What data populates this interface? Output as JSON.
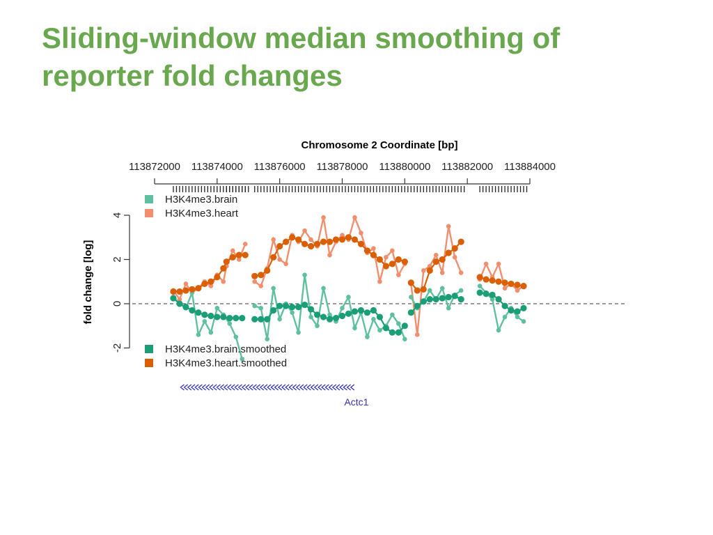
{
  "slide": {
    "title_line1": "Sliding-window median smoothing of",
    "title_line2": "reporter fold changes"
  },
  "colors": {
    "title": "#6aa84f",
    "brain": "#5fc0a0",
    "heart": "#f08e6e",
    "brain_smoothed": "#1b9e77",
    "heart_smoothed": "#d95f02",
    "gene": "#3333aa"
  },
  "chart_data": {
    "type": "line",
    "title": "Chromosome 2 Coordinate [bp]",
    "xlabel": "Chromosome 2 Coordinate [bp]",
    "ylabel": "fold change [log]",
    "xlim": [
      113871000,
      113886000
    ],
    "ylim": [
      -2.5,
      4.2
    ],
    "x_ticks": [
      113872000,
      113874000,
      113876000,
      113878000,
      113880000,
      113882000,
      113884000
    ],
    "x_tick_labels": [
      "113872000",
      "113874000",
      "113876000",
      "113878000",
      "113880000",
      "113882000",
      "113884000"
    ],
    "y_ticks": [
      -2,
      0,
      2,
      4
    ],
    "y_tick_labels": [
      "-2",
      "0",
      "2",
      "4"
    ],
    "reference_line": 0,
    "legend_top": [
      "H3K4me3.brain",
      "H3K4me3.heart"
    ],
    "legend_bottom": [
      "H3K4me3.brain.smoothed",
      "H3K4me3.heart.smoothed"
    ],
    "gene": {
      "name": "Actc1",
      "start": 113872900,
      "end": 113878500,
      "strand": "-"
    },
    "series": [
      {
        "name": "H3K4me3.heart",
        "segments": [
          {
            "x": [
              113872600,
              113872800,
              113873000,
              113873200,
              113873400,
              113873600,
              113873800,
              113874000,
              113874200,
              113874300,
              113874500,
              113874700,
              113874900
            ],
            "y": [
              0.6,
              0.2,
              0.9,
              0.5,
              0.7,
              1.0,
              0.8,
              1.3,
              1.0,
              1.7,
              2.4,
              2.0,
              2.7
            ]
          },
          {
            "x": [
              113875200,
              113875400,
              113875600,
              113875800,
              113876000,
              113876200,
              113876400,
              113876600,
              113876800,
              113877000,
              113877200,
              113877400,
              113877600,
              113877800,
              113878000,
              113878200,
              113878400,
              113878600,
              113878800,
              113879000,
              113879200,
              113879400,
              113879600,
              113879800,
              113880000
            ],
            "y": [
              1.0,
              0.8,
              1.6,
              2.9,
              2.0,
              1.8,
              3.1,
              2.8,
              3.3,
              2.9,
              2.6,
              3.9,
              2.2,
              2.8,
              3.1,
              2.9,
              3.9,
              3.2,
              2.3,
              2.5,
              1.0,
              2.1,
              2.4,
              1.3,
              1.8
            ]
          },
          {
            "x": [
              113880200,
              113880400,
              113880600,
              113880800,
              113881000,
              113881200,
              113881400,
              113881600,
              113881800
            ],
            "y": [
              0.9,
              -1.4,
              1.5,
              1.7,
              2.2,
              1.4,
              3.5,
              2.1,
              1.4
            ]
          },
          {
            "x": [
              113882400,
              113882600,
              113882800,
              113883000,
              113883200,
              113883400,
              113883600,
              113883800
            ],
            "y": [
              1.1,
              1.8,
              1.2,
              1.8,
              0.7,
              0.9,
              0.6,
              0.8
            ]
          }
        ]
      },
      {
        "name": "H3K4me3.brain",
        "segments": [
          {
            "x": [
              113872600,
              113872800,
              113873000,
              113873200,
              113873400,
              113873600,
              113873800,
              113874000,
              113874200,
              113874400,
              113874600,
              113874800
            ],
            "y": [
              0.3,
              0.0,
              -0.2,
              0.5,
              -1.4,
              -0.8,
              -1.3,
              -0.2,
              -0.5,
              -0.9,
              -1.5,
              -2.5
            ]
          },
          {
            "x": [
              113875200,
              113875400,
              113875600,
              113875800,
              113876000,
              113876200,
              113876400,
              113876600,
              113876800,
              113877000,
              113877200,
              113877400,
              113877600,
              113877800,
              113878000,
              113878200,
              113878400,
              113878600,
              113878800,
              113879000,
              113879200,
              113879400,
              113879600,
              113879800,
              113880000
            ],
            "y": [
              -0.1,
              -0.2,
              -1.6,
              0.7,
              -0.7,
              0.0,
              -0.4,
              -1.3,
              1.3,
              -0.6,
              -1.0,
              0.7,
              -0.5,
              -0.8,
              -0.2,
              0.3,
              -1.1,
              -0.4,
              -1.5,
              -0.7,
              -1.2,
              -1.0,
              -0.5,
              -0.9,
              -1.6
            ]
          },
          {
            "x": [
              113880200,
              113880400,
              113880600,
              113880800,
              113881000,
              113881200,
              113881400,
              113881600,
              113881800
            ],
            "y": [
              0.3,
              -0.2,
              0.1,
              0.6,
              0.2,
              0.7,
              -0.2,
              0.4,
              0.6
            ]
          },
          {
            "x": [
              113882400,
              113882600,
              113882800,
              113883000,
              113883200,
              113883400,
              113883600,
              113883800
            ],
            "y": [
              0.8,
              0.5,
              0.2,
              -1.2,
              -0.6,
              -0.2,
              -0.6,
              -0.8
            ]
          }
        ]
      },
      {
        "name": "H3K4me3.heart.smoothed",
        "segments": [
          {
            "x": [
              113872600,
              113872800,
              113873000,
              113873200,
              113873400,
              113873600,
              113873800,
              113874000,
              113874200,
              113874300,
              113874500,
              113874700,
              113874900
            ],
            "y": [
              0.55,
              0.55,
              0.6,
              0.65,
              0.7,
              0.9,
              1.0,
              1.2,
              1.6,
              1.9,
              2.1,
              2.2,
              2.2
            ]
          },
          {
            "x": [
              113875200,
              113875400,
              113875600,
              113875800,
              113876000,
              113876200,
              113876400,
              113876600,
              113876800,
              113877000,
              113877200,
              113877400,
              113877600,
              113877800,
              113878000,
              113878200,
              113878400,
              113878600,
              113878800,
              113879000,
              113879200,
              113879400,
              113879600,
              113879800,
              113880000
            ],
            "y": [
              1.25,
              1.3,
              1.5,
              2.1,
              2.6,
              2.8,
              3.0,
              2.9,
              2.7,
              2.6,
              2.7,
              2.8,
              2.8,
              2.9,
              2.9,
              3.0,
              2.9,
              2.7,
              2.4,
              2.2,
              2.0,
              1.7,
              1.8,
              2.0,
              1.9
            ]
          },
          {
            "x": [
              113880200,
              113880400,
              113880600,
              113880800,
              113881000,
              113881200,
              113881400,
              113881600,
              113881800
            ],
            "y": [
              0.95,
              0.6,
              0.65,
              1.5,
              1.9,
              2.0,
              2.3,
              2.5,
              2.8
            ]
          },
          {
            "x": [
              113882400,
              113882600,
              113882800,
              113883000,
              113883200,
              113883400,
              113883600,
              113883800
            ],
            "y": [
              1.2,
              1.1,
              1.05,
              1.0,
              0.95,
              0.9,
              0.85,
              0.8
            ]
          }
        ]
      },
      {
        "name": "H3K4me3.brain.smoothed",
        "segments": [
          {
            "x": [
              113872600,
              113872800,
              113873000,
              113873200,
              113873400,
              113873600,
              113873800,
              113874000,
              113874200,
              113874400,
              113874600,
              113874800
            ],
            "y": [
              0.25,
              0.0,
              -0.15,
              -0.3,
              -0.4,
              -0.5,
              -0.55,
              -0.6,
              -0.6,
              -0.65,
              -0.65,
              -0.65
            ]
          },
          {
            "x": [
              113875200,
              113875400,
              113875600,
              113875800,
              113876000,
              113876200,
              113876400,
              113876600,
              113876800,
              113877000,
              113877200,
              113877400,
              113877600,
              113877800,
              113878000,
              113878200,
              113878400,
              113878600,
              113878800,
              113879000,
              113879200,
              113879400,
              113879600,
              113879800,
              113880000
            ],
            "y": [
              -0.7,
              -0.7,
              -0.7,
              -0.3,
              -0.1,
              -0.1,
              -0.15,
              -0.15,
              -0.05,
              -0.25,
              -0.5,
              -0.6,
              -0.7,
              -0.65,
              -0.55,
              -0.45,
              -0.35,
              -0.3,
              -0.4,
              -0.3,
              -0.6,
              -1.1,
              -1.3,
              -1.3,
              -1.0
            ]
          },
          {
            "x": [
              113880200,
              113880400,
              113880600,
              113880800,
              113881000,
              113881200,
              113881400,
              113881600,
              113881800
            ],
            "y": [
              -0.4,
              -0.1,
              0.1,
              0.2,
              0.2,
              0.25,
              0.3,
              0.35,
              0.2
            ]
          },
          {
            "x": [
              113882400,
              113882600,
              113882800,
              113883000,
              113883200,
              113883400,
              113883600,
              113883800
            ],
            "y": [
              0.5,
              0.45,
              0.4,
              0.2,
              -0.1,
              -0.3,
              -0.35,
              -0.2
            ]
          }
        ]
      }
    ]
  }
}
